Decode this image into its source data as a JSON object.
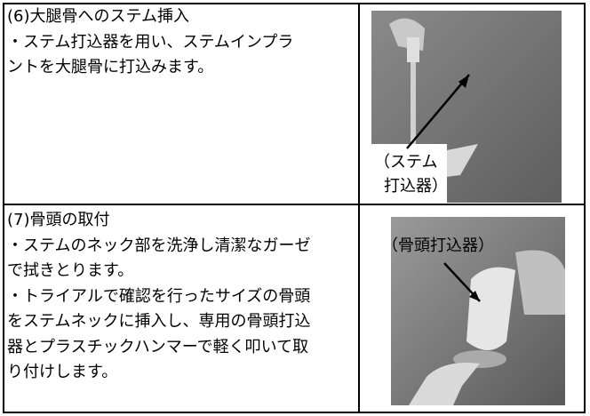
{
  "rows": [
    {
      "lines": [
        "(6)大腿骨へのステム挿入",
        "・ステム打込器を用い、ステムインプラ",
        "ントを大腿骨に打込みます。"
      ],
      "photo_label": [
        "（ステム",
        "打込器）"
      ]
    },
    {
      "lines": [
        "(7)骨頭の取付",
        "・ステムのネック部を洗浄し清潔なガーゼ",
        "で拭きとります。",
        "・トライアルで確認を行ったサイズの骨頭",
        "をステムネックに挿入し、専用の骨頭打込",
        "器とプラスチックハンマーで軽く叩いて取",
        "り付けします。"
      ],
      "photo_label": [
        "（骨頭打込器）"
      ]
    }
  ]
}
